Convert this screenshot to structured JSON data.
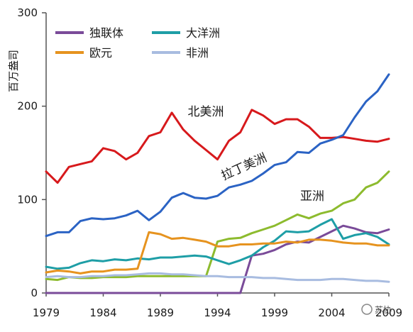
{
  "chart_data": {
    "type": "line",
    "title": "",
    "xlabel": "",
    "ylabel": "百万盎司",
    "xlim": [
      1979,
      2009
    ],
    "ylim": [
      0,
      300
    ],
    "y_ticks": [
      0,
      100,
      200,
      300
    ],
    "x_ticks": [
      1979,
      1984,
      1989,
      1994,
      1999,
      2004,
      2009
    ],
    "x_tick_labels": [
      "1979",
      "1984",
      "1989",
      "1994",
      "1999",
      "2004",
      "2009"
    ],
    "grid": false,
    "legend_position": "top-left",
    "x": [
      1979,
      1980,
      1981,
      1982,
      1983,
      1984,
      1985,
      1986,
      1987,
      1988,
      1989,
      1990,
      1991,
      1992,
      1993,
      1994,
      1995,
      1996,
      1997,
      1998,
      1999,
      2000,
      2001,
      2002,
      2003,
      2004,
      2005,
      2006,
      2007,
      2008,
      2009
    ],
    "series": [
      {
        "name": "北美洲",
        "color": "#d7191c",
        "legend": false,
        "values": [
          130,
          118,
          135,
          138,
          141,
          155,
          152,
          143,
          150,
          168,
          172,
          193,
          175,
          163,
          153,
          143,
          163,
          172,
          196,
          190,
          181,
          186,
          186,
          178,
          166,
          166,
          167,
          165,
          163,
          162,
          165
        ]
      },
      {
        "name": "拉丁美洲",
        "color": "#2b63c4",
        "legend": false,
        "values": [
          61,
          65,
          65,
          77,
          80,
          79,
          80,
          83,
          88,
          78,
          87,
          102,
          107,
          102,
          101,
          104,
          113,
          116,
          120,
          128,
          137,
          140,
          151,
          150,
          160,
          164,
          169,
          188,
          205,
          216,
          234
        ]
      },
      {
        "name": "亚洲",
        "color": "#8dbb2e",
        "legend": false,
        "values": [
          15,
          14,
          17,
          16,
          16,
          17,
          17,
          17,
          18,
          18,
          18,
          18,
          18,
          18,
          18,
          55,
          58,
          59,
          64,
          68,
          72,
          78,
          84,
          80,
          85,
          88,
          96,
          100,
          113,
          118,
          130
        ]
      },
      {
        "name": "独联体",
        "color": "#7a4b99",
        "legend": true,
        "values": [
          0,
          0,
          0,
          0,
          0,
          0,
          0,
          0,
          0,
          0,
          0,
          0,
          0,
          0,
          0,
          0,
          0,
          0,
          40,
          42,
          46,
          52,
          55,
          54,
          60,
          66,
          72,
          69,
          65,
          64,
          68
        ]
      },
      {
        "name": "大洋洲",
        "color": "#1e9ea6",
        "legend": true,
        "values": [
          28,
          26,
          27,
          32,
          35,
          34,
          36,
          35,
          37,
          36,
          38,
          38,
          39,
          40,
          39,
          35,
          31,
          35,
          40,
          49,
          56,
          66,
          65,
          66,
          73,
          79,
          58,
          62,
          64,
          60,
          52
        ]
      },
      {
        "name": "欧元",
        "color": "#e6931f",
        "legend": true,
        "values": [
          22,
          24,
          23,
          21,
          23,
          23,
          25,
          25,
          26,
          65,
          63,
          58,
          59,
          57,
          55,
          50,
          50,
          52,
          52,
          53,
          53,
          55,
          54,
          57,
          57,
          56,
          54,
          53,
          53,
          51,
          51
        ]
      },
      {
        "name": "非洲",
        "color": "#a8bce0",
        "legend": true,
        "values": [
          17,
          18,
          17,
          17,
          18,
          18,
          19,
          19,
          20,
          21,
          21,
          20,
          20,
          19,
          18,
          18,
          17,
          17,
          17,
          16,
          16,
          15,
          14,
          14,
          14,
          15,
          15,
          14,
          13,
          13,
          12
        ]
      }
    ],
    "annotations": [
      {
        "text": "北美洲",
        "series": "北美洲"
      },
      {
        "text": "拉丁美洲",
        "series": "拉丁美洲"
      },
      {
        "text": "亚洲",
        "series": "亚洲"
      }
    ]
  },
  "watermark": "苏协"
}
